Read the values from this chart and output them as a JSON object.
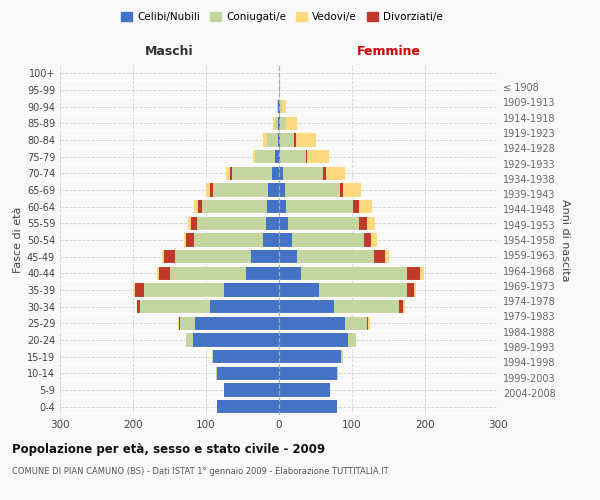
{
  "age_groups": [
    "0-4",
    "5-9",
    "10-14",
    "15-19",
    "20-24",
    "25-29",
    "30-34",
    "35-39",
    "40-44",
    "45-49",
    "50-54",
    "55-59",
    "60-64",
    "65-69",
    "70-74",
    "75-79",
    "80-84",
    "85-89",
    "90-94",
    "95-99",
    "100+"
  ],
  "birth_years": [
    "2004-2008",
    "1999-2003",
    "1994-1998",
    "1989-1993",
    "1984-1988",
    "1979-1983",
    "1974-1978",
    "1969-1973",
    "1964-1968",
    "1959-1963",
    "1954-1958",
    "1949-1953",
    "1944-1948",
    "1939-1943",
    "1934-1938",
    "1929-1933",
    "1924-1928",
    "1919-1923",
    "1914-1918",
    "1909-1913",
    "≤ 1908"
  ],
  "maschi": {
    "celibi": [
      85,
      75,
      85,
      90,
      118,
      115,
      95,
      75,
      45,
      38,
      22,
      18,
      16,
      15,
      10,
      5,
      2,
      1,
      1,
      0,
      0
    ],
    "coniugati": [
      0,
      0,
      1,
      2,
      10,
      20,
      95,
      110,
      105,
      105,
      95,
      95,
      90,
      75,
      55,
      28,
      15,
      5,
      2,
      0,
      0
    ],
    "vedovi": [
      0,
      0,
      0,
      0,
      0,
      1,
      0,
      2,
      2,
      2,
      3,
      3,
      5,
      5,
      5,
      3,
      5,
      2,
      0,
      0,
      0
    ],
    "divorziati": [
      0,
      0,
      0,
      0,
      0,
      2,
      5,
      12,
      15,
      15,
      10,
      8,
      5,
      5,
      2,
      0,
      0,
      0,
      0,
      0,
      0
    ]
  },
  "femmine": {
    "nubili": [
      80,
      70,
      80,
      85,
      95,
      90,
      75,
      55,
      30,
      25,
      18,
      12,
      10,
      8,
      5,
      2,
      1,
      1,
      1,
      0,
      0
    ],
    "coniugate": [
      0,
      0,
      1,
      2,
      10,
      30,
      90,
      120,
      145,
      105,
      98,
      98,
      92,
      75,
      55,
      35,
      20,
      8,
      3,
      1,
      0
    ],
    "vedove": [
      0,
      0,
      0,
      0,
      0,
      2,
      2,
      3,
      5,
      5,
      8,
      12,
      18,
      25,
      25,
      30,
      28,
      15,
      5,
      1,
      0
    ],
    "divorziate": [
      0,
      0,
      0,
      0,
      0,
      2,
      5,
      10,
      18,
      15,
      10,
      10,
      8,
      5,
      5,
      2,
      2,
      0,
      0,
      0,
      0
    ]
  },
  "colors": {
    "celibi_nubili": "#4472C4",
    "coniugati": "#C5D5A0",
    "vedovi": "#FFD97D",
    "divorziati": "#C0392B"
  },
  "title": "Popolazione per età, sesso e stato civile - 2009",
  "subtitle": "COMUNE DI PIAN CAMUNO (BS) - Dati ISTAT 1° gennaio 2009 - Elaborazione TUTTITALIA.IT",
  "xlabel_left": "Maschi",
  "xlabel_right": "Femmine",
  "ylabel_left": "Fasce di età",
  "ylabel_right": "Anni di nascita",
  "xlim": 300,
  "legend_labels": [
    "Celibi/Nubili",
    "Coniugati/e",
    "Vedovi/e",
    "Divorziati/e"
  ],
  "background_color": "#f9f9f9",
  "grid_color": "#cccccc"
}
